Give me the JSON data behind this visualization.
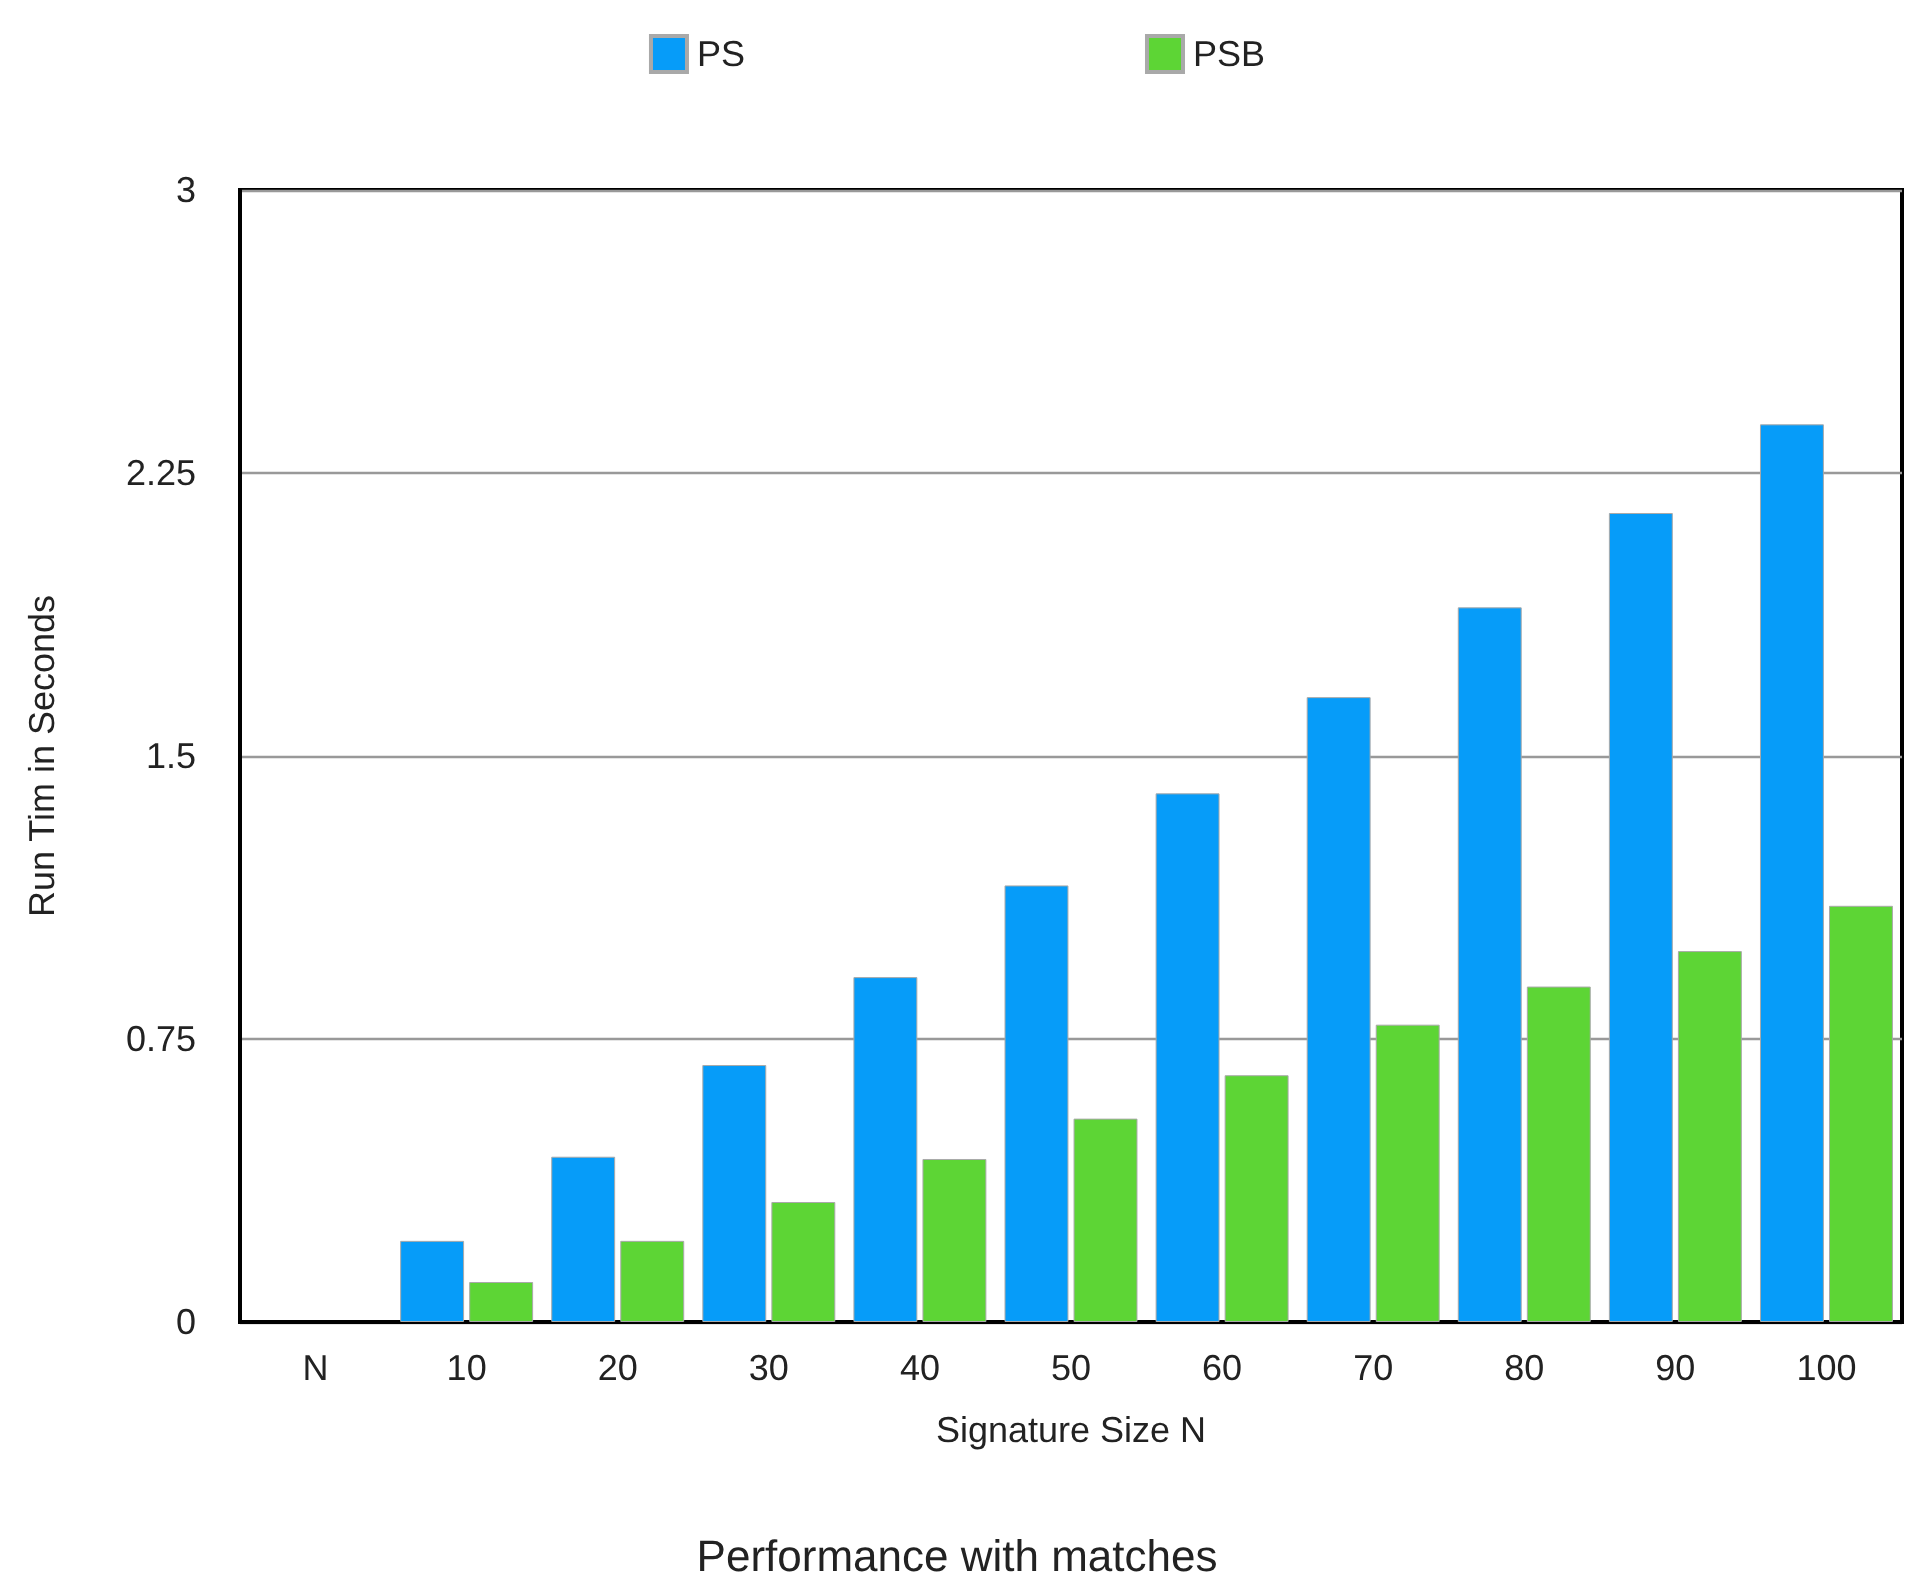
{
  "chart_data": {
    "type": "bar",
    "title": "Performance with matches",
    "xlabel": "Signature Size N",
    "ylabel": "Run Tim in Seconds",
    "categories": [
      "N",
      "10",
      "20",
      "30",
      "40",
      "50",
      "60",
      "70",
      "80",
      "90",
      "100"
    ],
    "series": [
      {
        "name": "PS",
        "color": "#069cf9",
        "values": [
          null,
          0.215,
          0.438,
          0.681,
          0.914,
          1.157,
          1.401,
          1.656,
          1.894,
          2.144,
          2.379
        ]
      },
      {
        "name": "PSB",
        "color": "#5dd535",
        "values": [
          null,
          0.106,
          0.215,
          0.318,
          0.432,
          0.539,
          0.654,
          0.788,
          0.889,
          0.983,
          1.103
        ]
      }
    ],
    "ylim": [
      0,
      3
    ],
    "yticks": [
      0,
      0.75,
      1.5,
      2.25,
      3
    ],
    "grid": "y",
    "legend": "top"
  }
}
